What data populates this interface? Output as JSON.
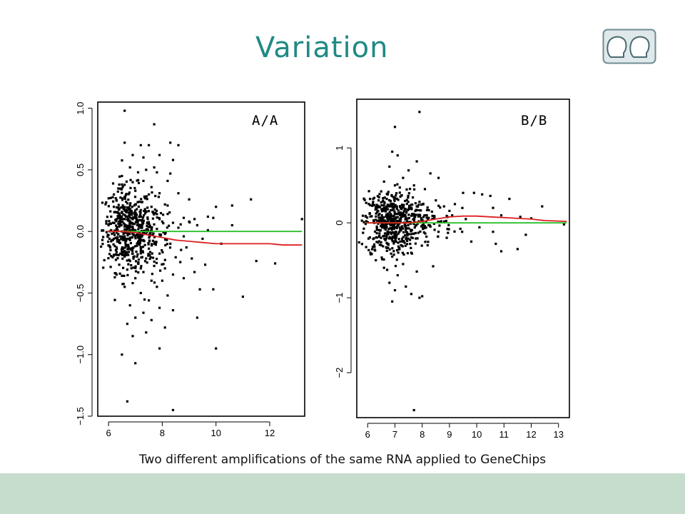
{
  "slide": {
    "title": "Variation",
    "caption": "Two different amplifications of the same RNA applied to GeneChips",
    "title_color": "#1f8a84",
    "footer_color": "#c6dccd",
    "logo_icon": "two-heads-icon"
  },
  "chart_data": [
    {
      "type": "scatter",
      "panel_label": "A/A",
      "xlim": [
        5.6,
        13.3
      ],
      "ylim": [
        -1.5,
        1.05
      ],
      "x_ticks": [
        6,
        8,
        10,
        12
      ],
      "y_ticks": [
        -1.5,
        -1.0,
        -0.5,
        0.0,
        0.5,
        1.0
      ],
      "x_tick_labels": [
        "6",
        "8",
        "10",
        "12"
      ],
      "y_tick_labels": [
        "−1.5",
        "−1.0",
        "−0.5",
        "0.0",
        "0.5",
        "1.0"
      ],
      "point_color": "#000000",
      "points": [
        [
          6.6,
          0.98
        ],
        [
          7.7,
          0.87
        ],
        [
          6.6,
          0.72
        ],
        [
          7.2,
          0.7
        ],
        [
          7.5,
          0.7
        ],
        [
          8.6,
          0.7
        ],
        [
          8.3,
          0.72
        ],
        [
          6.9,
          0.62
        ],
        [
          7.9,
          0.62
        ],
        [
          7.3,
          0.6
        ],
        [
          8.4,
          0.58
        ],
        [
          7.7,
          0.52
        ],
        [
          7.1,
          0.48
        ],
        [
          7.8,
          0.48
        ],
        [
          8.3,
          0.47
        ],
        [
          6.5,
          0.45
        ],
        [
          8.2,
          0.41
        ],
        [
          7.3,
          0.41
        ],
        [
          6.4,
          0.38
        ],
        [
          7.6,
          0.36
        ],
        [
          6.5,
          0.35
        ],
        [
          7.0,
          0.33
        ],
        [
          7.9,
          0.31
        ],
        [
          8.6,
          0.31
        ],
        [
          9.0,
          0.26
        ],
        [
          11.3,
          0.26
        ],
        [
          10.6,
          0.21
        ],
        [
          10.0,
          0.2
        ],
        [
          8.2,
          0.21
        ],
        [
          6.6,
          0.28
        ],
        [
          6.3,
          0.25
        ],
        [
          7.0,
          0.22
        ],
        [
          7.6,
          0.2
        ],
        [
          6.2,
          0.2
        ],
        [
          6.8,
          0.18
        ],
        [
          7.4,
          0.16
        ],
        [
          6.5,
          0.15
        ],
        [
          7.8,
          0.14
        ],
        [
          9.7,
          0.12
        ],
        [
          9.9,
          0.11
        ],
        [
          9.2,
          0.1
        ],
        [
          8.8,
          0.11
        ],
        [
          6.1,
          0.12
        ],
        [
          6.6,
          0.1
        ],
        [
          7.1,
          0.09
        ],
        [
          8.0,
          0.08
        ],
        [
          6.2,
          0.07
        ],
        [
          6.9,
          0.06
        ],
        [
          7.5,
          0.06
        ],
        [
          8.4,
          0.07
        ],
        [
          9.3,
          0.05
        ],
        [
          6.0,
          0.05
        ],
        [
          6.4,
          0.04
        ],
        [
          7.2,
          0.03
        ],
        [
          8.6,
          0.03
        ],
        [
          6.7,
          0.02
        ],
        [
          7.8,
          0.02
        ],
        [
          9.7,
          0.01
        ],
        [
          6.1,
          0.01
        ],
        [
          6.5,
          0.0
        ],
        [
          7.0,
          0.0
        ],
        [
          7.6,
          0.0
        ],
        [
          6.3,
          -0.01
        ],
        [
          6.9,
          -0.02
        ],
        [
          7.4,
          -0.02
        ],
        [
          8.1,
          -0.02
        ],
        [
          6.0,
          -0.03
        ],
        [
          6.6,
          -0.04
        ],
        [
          7.1,
          -0.05
        ],
        [
          8.8,
          -0.04
        ],
        [
          6.2,
          -0.06
        ],
        [
          6.8,
          -0.07
        ],
        [
          7.3,
          -0.07
        ],
        [
          9.5,
          -0.06
        ],
        [
          6.1,
          -0.08
        ],
        [
          6.4,
          -0.09
        ],
        [
          7.7,
          -0.1
        ],
        [
          8.3,
          -0.1
        ],
        [
          6.7,
          -0.11
        ],
        [
          7.0,
          -0.12
        ],
        [
          6.3,
          -0.13
        ],
        [
          7.5,
          -0.14
        ],
        [
          8.9,
          -0.13
        ],
        [
          6.5,
          -0.15
        ],
        [
          7.2,
          -0.16
        ],
        [
          6.9,
          -0.18
        ],
        [
          7.9,
          -0.18
        ],
        [
          6.2,
          -0.19
        ],
        [
          6.6,
          -0.2
        ],
        [
          8.5,
          -0.21
        ],
        [
          7.4,
          -0.22
        ],
        [
          6.8,
          -0.24
        ],
        [
          9.1,
          -0.22
        ],
        [
          7.1,
          -0.26
        ],
        [
          6.4,
          -0.27
        ],
        [
          7.7,
          -0.28
        ],
        [
          8.1,
          -0.3
        ],
        [
          6.7,
          -0.31
        ],
        [
          9.6,
          -0.27
        ],
        [
          11.5,
          -0.24
        ],
        [
          12.2,
          -0.26
        ],
        [
          7.3,
          -0.33
        ],
        [
          8.4,
          -0.35
        ],
        [
          9.2,
          -0.33
        ],
        [
          6.5,
          -0.36
        ],
        [
          7.0,
          -0.38
        ],
        [
          7.6,
          -0.4
        ],
        [
          8.8,
          -0.38
        ],
        [
          6.9,
          -0.42
        ],
        [
          9.4,
          -0.47
        ],
        [
          9.9,
          -0.47
        ],
        [
          7.8,
          -0.45
        ],
        [
          7.2,
          -0.5
        ],
        [
          8.2,
          -0.52
        ],
        [
          11.0,
          -0.53
        ],
        [
          7.5,
          -0.56
        ],
        [
          6.8,
          -0.6
        ],
        [
          7.9,
          -0.62
        ],
        [
          8.4,
          -0.64
        ],
        [
          7.3,
          -0.66
        ],
        [
          7.0,
          -0.7
        ],
        [
          6.7,
          -0.75
        ],
        [
          7.6,
          -0.72
        ],
        [
          9.3,
          -0.7
        ],
        [
          8.1,
          -0.78
        ],
        [
          7.4,
          -0.82
        ],
        [
          6.5,
          -1.0
        ],
        [
          7.0,
          -1.07
        ],
        [
          7.9,
          -0.95
        ],
        [
          10.0,
          -0.95
        ],
        [
          8.4,
          -1.45
        ],
        [
          6.7,
          -1.38
        ],
        [
          6.2,
          0.3
        ],
        [
          6.9,
          0.4
        ],
        [
          7.4,
          0.5
        ],
        [
          6.3,
          -0.35
        ],
        [
          6.6,
          -0.45
        ],
        [
          7.9,
          0.1
        ],
        [
          8.7,
          -0.15
        ],
        [
          10.2,
          -0.1
        ],
        [
          6.1,
          -0.2
        ],
        [
          6.4,
          0.18
        ],
        [
          7.2,
          -0.3
        ],
        [
          6.8,
          0.52
        ],
        [
          9.0,
          0.08
        ],
        [
          8.0,
          -0.4
        ],
        [
          10.6,
          0.05
        ],
        [
          13.2,
          0.1
        ],
        [
          7.5,
          0.3
        ],
        [
          6.9,
          -0.85
        ]
      ],
      "density_clusters": [
        {
          "cx": 6.7,
          "cy": 0.02,
          "sx": 0.45,
          "sy": 0.17,
          "n": 420
        },
        {
          "cx": 7.6,
          "cy": -0.03,
          "sx": 0.45,
          "sy": 0.13,
          "n": 120
        }
      ],
      "series": [
        {
          "color": "#2bbf2b",
          "x": [
            5.95,
            13.2
          ],
          "y": [
            0.0,
            0.0
          ]
        },
        {
          "color": "#dd1f1f",
          "x": [
            5.95,
            6.5,
            7.0,
            7.5,
            8.0,
            8.5,
            9.0,
            9.5,
            10.0,
            10.5,
            11.0,
            11.5,
            12.0,
            12.5,
            13.2
          ],
          "y": [
            0.0,
            0.0,
            -0.01,
            -0.03,
            -0.05,
            -0.07,
            -0.08,
            -0.09,
            -0.1,
            -0.1,
            -0.1,
            -0.1,
            -0.1,
            -0.11,
            -0.11
          ]
        }
      ]
    },
    {
      "type": "scatter",
      "panel_label": "B/B",
      "xlim": [
        5.6,
        13.4
      ],
      "ylim": [
        -2.6,
        1.65
      ],
      "x_ticks": [
        6,
        7,
        8,
        9,
        10,
        11,
        12,
        13
      ],
      "y_ticks": [
        -2,
        -1,
        0,
        1
      ],
      "x_tick_labels": [
        "6",
        "7",
        "8",
        "9",
        "10",
        "11",
        "12",
        "13"
      ],
      "y_tick_labels": [
        "−2",
        "−1",
        "0",
        "1"
      ],
      "point_color": "#000000",
      "points": [
        [
          7.9,
          1.48
        ],
        [
          7.0,
          1.28
        ],
        [
          6.9,
          0.95
        ],
        [
          7.1,
          0.9
        ],
        [
          7.8,
          0.82
        ],
        [
          6.8,
          0.75
        ],
        [
          7.5,
          0.7
        ],
        [
          8.3,
          0.66
        ],
        [
          8.6,
          0.6
        ],
        [
          7.3,
          0.6
        ],
        [
          6.6,
          0.55
        ],
        [
          7.7,
          0.5
        ],
        [
          8.1,
          0.45
        ],
        [
          9.5,
          0.4
        ],
        [
          9.9,
          0.4
        ],
        [
          10.2,
          0.38
        ],
        [
          10.5,
          0.36
        ],
        [
          11.2,
          0.32
        ],
        [
          12.4,
          0.22
        ],
        [
          10.6,
          0.2
        ],
        [
          9.2,
          0.25
        ],
        [
          8.8,
          0.22
        ],
        [
          6.4,
          0.3
        ],
        [
          7.2,
          0.35
        ],
        [
          6.7,
          0.32
        ],
        [
          7.9,
          0.28
        ],
        [
          8.5,
          0.3
        ],
        [
          6.2,
          0.28
        ],
        [
          7.5,
          0.18
        ],
        [
          9.0,
          0.16
        ],
        [
          10.9,
          0.1
        ],
        [
          11.6,
          0.08
        ],
        [
          12.0,
          0.06
        ],
        [
          9.6,
          0.05
        ],
        [
          8.7,
          0.02
        ],
        [
          13.2,
          -0.02
        ],
        [
          10.1,
          -0.06
        ],
        [
          9.4,
          -0.08
        ],
        [
          10.6,
          -0.12
        ],
        [
          11.8,
          -0.16
        ],
        [
          8.9,
          -0.2
        ],
        [
          9.8,
          -0.25
        ],
        [
          10.7,
          -0.28
        ],
        [
          10.9,
          -0.38
        ],
        [
          11.5,
          -0.35
        ],
        [
          8.2,
          -0.3
        ],
        [
          7.6,
          -0.4
        ],
        [
          6.9,
          -0.45
        ],
        [
          7.3,
          -0.55
        ],
        [
          6.6,
          -0.6
        ],
        [
          7.1,
          -0.7
        ],
        [
          7.8,
          -0.65
        ],
        [
          8.4,
          -0.58
        ],
        [
          6.8,
          -0.8
        ],
        [
          7.0,
          -0.9
        ],
        [
          7.4,
          -0.85
        ],
        [
          7.6,
          -0.95
        ],
        [
          7.9,
          -1.0
        ],
        [
          8.0,
          -0.98
        ],
        [
          6.9,
          -1.05
        ],
        [
          7.7,
          -2.5
        ],
        [
          6.5,
          -0.3
        ],
        [
          6.3,
          -0.5
        ],
        [
          7.2,
          -0.25
        ],
        [
          7.5,
          -0.15
        ],
        [
          6.1,
          -0.4
        ],
        [
          6.7,
          -0.2
        ],
        [
          8.6,
          -0.12
        ],
        [
          9.1,
          0.1
        ],
        [
          7.0,
          0.5
        ]
      ],
      "density_clusters": [
        {
          "cx": 6.8,
          "cy": 0.0,
          "sx": 0.45,
          "sy": 0.22,
          "n": 430
        },
        {
          "cx": 7.9,
          "cy": 0.03,
          "sx": 0.6,
          "sy": 0.14,
          "n": 140
        }
      ],
      "series": [
        {
          "color": "#2bbf2b",
          "x": [
            5.95,
            13.3
          ],
          "y": [
            0.0,
            0.0
          ]
        },
        {
          "color": "#dd1f1f",
          "x": [
            5.95,
            6.5,
            7.0,
            7.5,
            8.0,
            8.5,
            9.0,
            9.5,
            10.0,
            10.5,
            11.0,
            11.5,
            12.0,
            12.5,
            13.3
          ],
          "y": [
            0.0,
            0.0,
            0.0,
            0.0,
            0.02,
            0.05,
            0.08,
            0.09,
            0.09,
            0.08,
            0.07,
            0.06,
            0.05,
            0.03,
            0.02
          ]
        }
      ]
    }
  ]
}
